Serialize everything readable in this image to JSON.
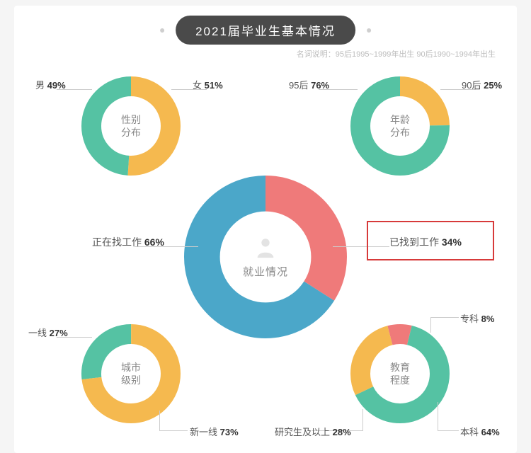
{
  "title": "2021届毕业生基本情况",
  "subtitle": "名词说明：95后1995~1999年出生  90后1990~1994年出生",
  "colors": {
    "teal": "#55c2a3",
    "yellow": "#f5b94f",
    "blue": "#4ba7c9",
    "red": "#ef7a7a",
    "track": "#f2f2f2",
    "bg": "#ffffff"
  },
  "center_chart": {
    "title": "就业情况",
    "size": 230,
    "thickness_ratio": 0.22,
    "segments": [
      {
        "label": "正在找工作",
        "value": 66,
        "color": "#4ba7c9"
      },
      {
        "label": "已找到工作",
        "value": 34,
        "color": "#ef7a7a"
      }
    ],
    "label_left": "正在找工作",
    "label_left_pct": "66%",
    "label_right": "已找到工作",
    "label_right_pct": "34%"
  },
  "small_charts": {
    "size": 140,
    "thickness_ratio": 0.2,
    "gender": {
      "title_l1": "性别",
      "title_l2": "分布",
      "segments": [
        {
          "label": "男",
          "value": 49,
          "color": "#55c2a3"
        },
        {
          "label": "女",
          "value": 51,
          "color": "#f5b94f"
        }
      ],
      "lbl_left": "男",
      "lbl_left_pct": "49%",
      "lbl_right": "女",
      "lbl_right_pct": "51%"
    },
    "age": {
      "title_l1": "年龄",
      "title_l2": "分布",
      "segments": [
        {
          "label": "95后",
          "value": 76,
          "color": "#55c2a3"
        },
        {
          "label": "90后",
          "value": 25,
          "color": "#f5b94f"
        }
      ],
      "lbl_left": "95后",
      "lbl_left_pct": "76%",
      "lbl_right": "90后",
      "lbl_right_pct": "25%"
    },
    "city": {
      "title_l1": "城市",
      "title_l2": "级别",
      "segments": [
        {
          "label": "一线",
          "value": 27,
          "color": "#55c2a3"
        },
        {
          "label": "新一线",
          "value": 73,
          "color": "#f5b94f"
        }
      ],
      "lbl_left": "一线",
      "lbl_left_pct": "27%",
      "lbl_right": "新一线",
      "lbl_right_pct": "73%"
    },
    "edu": {
      "title_l1": "教育",
      "title_l2": "程度",
      "segments": [
        {
          "label": "本科",
          "value": 64,
          "color": "#55c2a3"
        },
        {
          "label": "研究生及以上",
          "value": 28,
          "color": "#f5b94f"
        },
        {
          "label": "专科",
          "value": 8,
          "color": "#ef7a7a"
        }
      ],
      "lbl_tr": "专科",
      "lbl_tr_pct": "8%",
      "lbl_br": "本科",
      "lbl_br_pct": "64%",
      "lbl_bl": "研究生及以上",
      "lbl_bl_pct": "28%"
    }
  }
}
